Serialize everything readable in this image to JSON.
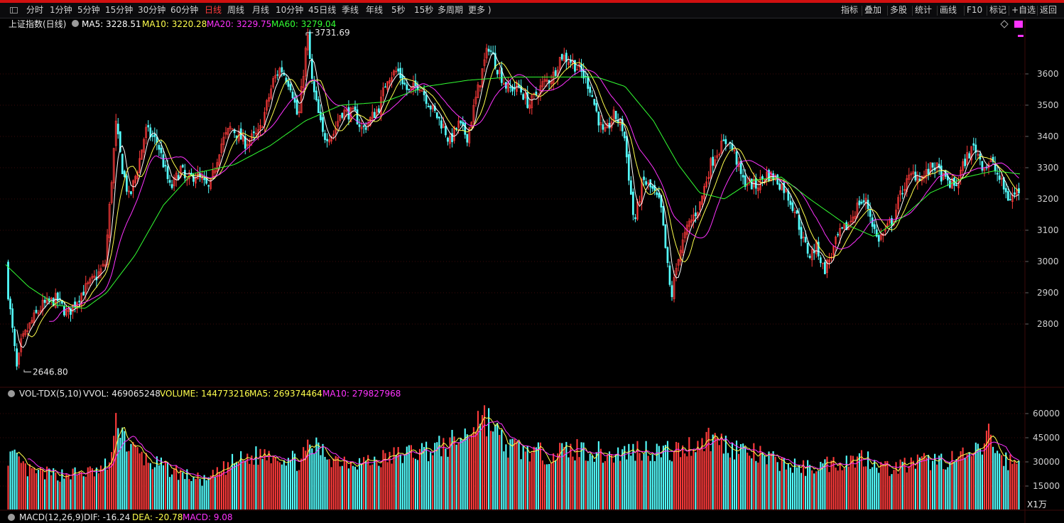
{
  "colors": {
    "up": "#ff3b3b",
    "down": "#54ffff",
    "ma5": "#ffffff",
    "ma10": "#ffff4d",
    "ma20": "#ff33ff",
    "ma60": "#33ff33",
    "grid": "#3a0a0a",
    "topbar": "#d01010",
    "axisText": "#cfcfcf"
  },
  "toolbar": {
    "periods": [
      "分时",
      "1分钟",
      "5分钟",
      "15分钟",
      "30分钟",
      "60分钟",
      "日线",
      "周线",
      "月线",
      "10分钟",
      "45日线",
      "季线",
      "年线",
      "5秒",
      "15秒",
      "多周期",
      "更多 )"
    ],
    "active_index": 6,
    "right": [
      "指标",
      "叠加",
      "多股",
      "统计",
      "画线",
      "F10",
      "标记",
      "+自选",
      "返回"
    ]
  },
  "main": {
    "title": "上证指数(日线)",
    "ma5_label": "MA5: 3228.51",
    "ma10_label": "MA10: 3220.28",
    "ma20_label": "MA20: 3229.75",
    "ma60_label": "MA60: 3279.04",
    "high_marker": "3731.69",
    "low_marker": "2646.80",
    "icons": [
      "chevron-down-icon",
      "diamond-icon",
      "dots-icon"
    ]
  },
  "volume": {
    "label_name": "VOL-TDX(5,10)",
    "vvol": "VVOL: 469065248",
    "volume": "VOLUME: 144773216",
    "ma5": "MA5: 269374464",
    "ma10": "MA10: 279827968",
    "unit": "X1万"
  },
  "macd": {
    "label_name": "MACD(12,26,9)",
    "dif": "DIF: -16.24",
    "dea": "DEA: -20.78",
    "macd": "MACD: 9.08"
  },
  "chart_data": [
    {
      "type": "candlestick",
      "title": "上证指数(日线)",
      "ylim": [
        2600,
        3760
      ],
      "yticks": [
        2800,
        2900,
        3000,
        3100,
        3200,
        3300,
        3400,
        3500,
        3600
      ],
      "n_bars": 470,
      "keypoints": [
        [
          0,
          2990
        ],
        [
          6,
          3010
        ],
        [
          24,
          2650
        ],
        [
          30,
          2740
        ],
        [
          45,
          2810
        ],
        [
          60,
          2860
        ],
        [
          80,
          2880
        ],
        [
          95,
          2830
        ],
        [
          115,
          2900
        ],
        [
          135,
          2950
        ],
        [
          148,
          2990
        ],
        [
          163,
          3440
        ],
        [
          172,
          3300
        ],
        [
          182,
          3200
        ],
        [
          195,
          3310
        ],
        [
          205,
          3420
        ],
        [
          222,
          3380
        ],
        [
          240,
          3230
        ],
        [
          255,
          3300
        ],
        [
          262,
          3250
        ],
        [
          275,
          3280
        ],
        [
          295,
          3230
        ],
        [
          310,
          3370
        ],
        [
          325,
          3430
        ],
        [
          345,
          3380
        ],
        [
          365,
          3410
        ],
        [
          385,
          3580
        ],
        [
          395,
          3620
        ],
        [
          410,
          3560
        ],
        [
          420,
          3450
        ],
        [
          430,
          3670
        ],
        [
          433,
          3720
        ],
        [
          440,
          3560
        ],
        [
          455,
          3400
        ],
        [
          470,
          3410
        ],
        [
          480,
          3480
        ],
        [
          500,
          3470
        ],
        [
          510,
          3420
        ],
        [
          520,
          3450
        ],
        [
          535,
          3500
        ],
        [
          545,
          3590
        ],
        [
          560,
          3610
        ],
        [
          575,
          3540
        ],
        [
          590,
          3570
        ],
        [
          605,
          3500
        ],
        [
          625,
          3430
        ],
        [
          633,
          3380
        ],
        [
          645,
          3440
        ],
        [
          658,
          3400
        ],
        [
          670,
          3520
        ],
        [
          680,
          3620
        ],
        [
          688,
          3690
        ],
        [
          700,
          3620
        ],
        [
          715,
          3550
        ],
        [
          730,
          3560
        ],
        [
          745,
          3500
        ],
        [
          765,
          3570
        ],
        [
          778,
          3590
        ],
        [
          790,
          3660
        ],
        [
          805,
          3640
        ],
        [
          820,
          3600
        ],
        [
          830,
          3560
        ],
        [
          842,
          3460
        ],
        [
          850,
          3400
        ],
        [
          865,
          3470
        ],
        [
          878,
          3420
        ],
        [
          885,
          3280
        ],
        [
          893,
          3120
        ],
        [
          905,
          3260
        ],
        [
          918,
          3230
        ],
        [
          930,
          3180
        ],
        [
          945,
          2880
        ],
        [
          955,
          3020
        ],
        [
          970,
          3120
        ],
        [
          985,
          3180
        ],
        [
          1000,
          3310
        ],
        [
          1012,
          3360
        ],
        [
          1025,
          3390
        ],
        [
          1035,
          3340
        ],
        [
          1045,
          3260
        ],
        [
          1055,
          3250
        ],
        [
          1065,
          3240
        ],
        [
          1078,
          3280
        ],
        [
          1090,
          3270
        ],
        [
          1105,
          3230
        ],
        [
          1120,
          3160
        ],
        [
          1130,
          3070
        ],
        [
          1140,
          3020
        ],
        [
          1150,
          3050
        ],
        [
          1160,
          2970
        ],
        [
          1170,
          3020
        ],
        [
          1180,
          3080
        ],
        [
          1195,
          3120
        ],
        [
          1210,
          3190
        ],
        [
          1220,
          3190
        ],
        [
          1235,
          3070
        ],
        [
          1245,
          3090
        ],
        [
          1258,
          3140
        ],
        [
          1270,
          3230
        ],
        [
          1285,
          3280
        ],
        [
          1300,
          3270
        ],
        [
          1315,
          3310
        ],
        [
          1330,
          3260
        ],
        [
          1345,
          3240
        ],
        [
          1360,
          3330
        ],
        [
          1372,
          3370
        ],
        [
          1385,
          3300
        ],
        [
          1395,
          3320
        ],
        [
          1408,
          3260
        ],
        [
          1420,
          3200
        ],
        [
          1428,
          3215
        ],
        [
          1436,
          3230
        ]
      ],
      "ma60_keypoints": [
        [
          8,
          2990
        ],
        [
          40,
          2920
        ],
        [
          80,
          2860
        ],
        [
          120,
          2850
        ],
        [
          150,
          2900
        ],
        [
          190,
          3020
        ],
        [
          230,
          3180
        ],
        [
          270,
          3280
        ],
        [
          330,
          3310
        ],
        [
          380,
          3370
        ],
        [
          430,
          3450
        ],
        [
          480,
          3500
        ],
        [
          540,
          3510
        ],
        [
          600,
          3560
        ],
        [
          660,
          3580
        ],
        [
          720,
          3590
        ],
        [
          780,
          3590
        ],
        [
          840,
          3590
        ],
        [
          880,
          3560
        ],
        [
          920,
          3450
        ],
        [
          955,
          3310
        ],
        [
          985,
          3220
        ],
        [
          1020,
          3200
        ],
        [
          1060,
          3260
        ],
        [
          1100,
          3270
        ],
        [
          1140,
          3200
        ],
        [
          1190,
          3120
        ],
        [
          1230,
          3080
        ],
        [
          1270,
          3140
        ],
        [
          1310,
          3220
        ],
        [
          1360,
          3270
        ],
        [
          1400,
          3290
        ],
        [
          1436,
          3280
        ]
      ],
      "ma5": 3228.51,
      "ma10": 3220.28,
      "ma20": 3229.75,
      "ma60": 3279.04,
      "high": 3731.69,
      "low": 2646.8
    },
    {
      "type": "bar",
      "title": "VOL-TDX(5,10)",
      "unit": "X1万",
      "ylim": [
        0,
        66000
      ],
      "yticks": [
        15000,
        30000,
        45000,
        60000
      ],
      "n_bars": 470,
      "keypoints": [
        [
          0,
          38000
        ],
        [
          20,
          32000
        ],
        [
          40,
          24000
        ],
        [
          80,
          22000
        ],
        [
          140,
          24000
        ],
        [
          155,
          30000
        ],
        [
          166,
          58000
        ],
        [
          180,
          40000
        ],
        [
          210,
          30000
        ],
        [
          260,
          22000
        ],
        [
          290,
          18000
        ],
        [
          330,
          30000
        ],
        [
          380,
          36000
        ],
        [
          420,
          30000
        ],
        [
          440,
          40000
        ],
        [
          470,
          32000
        ],
        [
          520,
          30000
        ],
        [
          580,
          36000
        ],
        [
          630,
          40000
        ],
        [
          660,
          48000
        ],
        [
          675,
          60000
        ],
        [
          690,
          55000
        ],
        [
          710,
          40000
        ],
        [
          760,
          35000
        ],
        [
          820,
          38000
        ],
        [
          860,
          34000
        ],
        [
          900,
          38000
        ],
        [
          950,
          36000
        ],
        [
          1000,
          45000
        ],
        [
          1040,
          38000
        ],
        [
          1080,
          32000
        ],
        [
          1130,
          26000
        ],
        [
          1180,
          30000
        ],
        [
          1220,
          33000
        ],
        [
          1250,
          26000
        ],
        [
          1300,
          30000
        ],
        [
          1350,
          32000
        ],
        [
          1380,
          36000
        ],
        [
          1390,
          48000
        ],
        [
          1410,
          32000
        ],
        [
          1436,
          28000
        ]
      ],
      "vvol": 469065248,
      "volume": 144773216,
      "ma5": 269374464,
      "ma10": 279827968
    }
  ]
}
